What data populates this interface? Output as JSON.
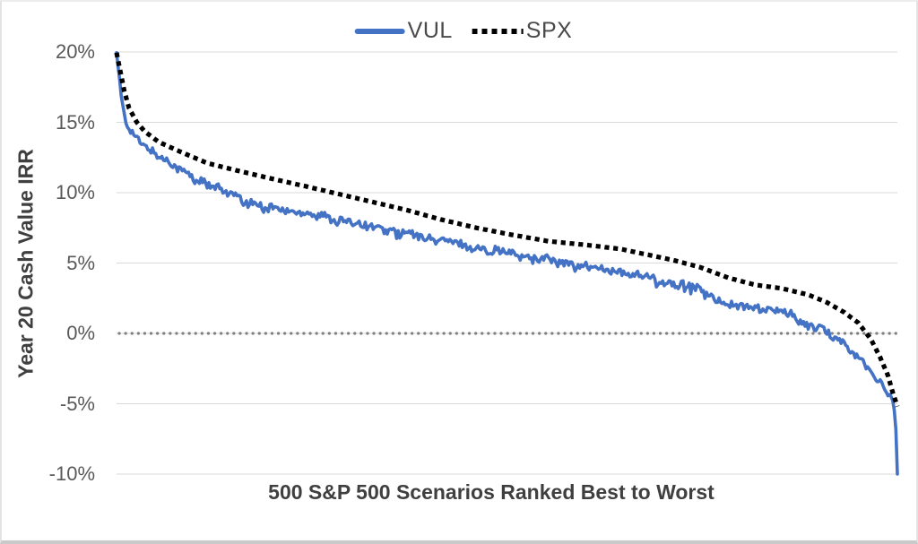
{
  "chart_data": {
    "type": "line",
    "title": "",
    "xlabel": "500 S&P 500 Scenarios Ranked Best to Worst",
    "ylabel": "Year 20 Cash Value IRR",
    "x_range": [
      1,
      500
    ],
    "ylim": [
      -10,
      20
    ],
    "y_ticks": [
      "20%",
      "15%",
      "10%",
      "5%",
      "0%",
      "-5%",
      "-10%"
    ],
    "y_tick_values": [
      20,
      15,
      10,
      5,
      0,
      -5,
      -10
    ],
    "grid": true,
    "legend_position": "top-center",
    "zero_reference_line": {
      "value": 0,
      "color": "#7f7f7f",
      "style": "round-dotted"
    },
    "series": [
      {
        "name": "VUL",
        "color": "#4472C4",
        "style": "solid",
        "noise": 0.26,
        "control_points": [
          [
            1,
            19.95
          ],
          [
            3,
            18.0
          ],
          [
            4,
            16.8
          ],
          [
            7,
            15.0
          ],
          [
            11,
            14.2
          ],
          [
            16,
            13.6
          ],
          [
            22,
            13.1
          ],
          [
            31,
            12.4
          ],
          [
            42,
            11.6
          ],
          [
            54,
            10.9
          ],
          [
            65,
            10.3
          ],
          [
            77,
            9.8
          ],
          [
            82,
            9.35
          ],
          [
            88,
            9.25
          ],
          [
            95,
            9.05
          ],
          [
            105,
            8.85
          ],
          [
            128,
            8.45
          ],
          [
            157,
            7.75
          ],
          [
            187,
            7.05
          ],
          [
            214,
            6.5
          ],
          [
            228,
            6.1
          ],
          [
            243,
            5.9
          ],
          [
            256,
            5.6
          ],
          [
            271,
            5.35
          ],
          [
            286,
            5.05
          ],
          [
            300,
            4.8
          ],
          [
            314,
            4.5
          ],
          [
            323,
            4.35
          ],
          [
            340,
            4.0
          ],
          [
            346,
            3.8
          ],
          [
            357,
            3.55
          ],
          [
            372,
            3.25
          ],
          [
            380,
            2.7
          ],
          [
            386,
            2.4
          ],
          [
            395,
            2.0
          ],
          [
            403,
            1.9
          ],
          [
            415,
            1.75
          ],
          [
            426,
            1.5
          ],
          [
            432,
            1.3
          ],
          [
            438,
            0.9
          ],
          [
            443,
            0.6
          ],
          [
            450,
            0.35
          ],
          [
            460,
            -0.3
          ],
          [
            466,
            -0.7
          ],
          [
            472,
            -1.4
          ],
          [
            478,
            -2.0
          ],
          [
            483,
            -2.8
          ],
          [
            488,
            -3.4
          ],
          [
            492,
            -3.9
          ],
          [
            495,
            -4.4
          ],
          [
            497,
            -4.9
          ],
          [
            498,
            -5.4
          ],
          [
            499,
            -6.8
          ],
          [
            500,
            -10.0
          ]
        ]
      },
      {
        "name": "SPX",
        "color": "#000000",
        "style": "square-dotted",
        "noise": 0,
        "control_points": [
          [
            1,
            19.95
          ],
          [
            4,
            18.3
          ],
          [
            6,
            17.2
          ],
          [
            9,
            16.0
          ],
          [
            14,
            15.0
          ],
          [
            19,
            14.35
          ],
          [
            28,
            13.6
          ],
          [
            42,
            12.9
          ],
          [
            59,
            12.1
          ],
          [
            77,
            11.6
          ],
          [
            100,
            11.0
          ],
          [
            122,
            10.45
          ],
          [
            145,
            9.85
          ],
          [
            168,
            9.25
          ],
          [
            187,
            8.75
          ],
          [
            208,
            8.1
          ],
          [
            231,
            7.5
          ],
          [
            254,
            7.0
          ],
          [
            277,
            6.55
          ],
          [
            300,
            6.3
          ],
          [
            323,
            6.0
          ],
          [
            340,
            5.6
          ],
          [
            357,
            5.2
          ],
          [
            374,
            4.7
          ],
          [
            392,
            3.95
          ],
          [
            409,
            3.45
          ],
          [
            426,
            3.2
          ],
          [
            443,
            2.75
          ],
          [
            455,
            2.2
          ],
          [
            466,
            1.5
          ],
          [
            475,
            0.75
          ],
          [
            483,
            -0.4
          ],
          [
            489,
            -1.7
          ],
          [
            494,
            -3.0
          ],
          [
            497,
            -4.2
          ],
          [
            500,
            -5.2
          ]
        ]
      }
    ]
  },
  "colors": {
    "background": "#ffffff",
    "gridline": "#d9d9d9",
    "tick_label": "#595959",
    "axis_title": "#3f3f3f",
    "legend_label": "#4a4a4a",
    "vul_blue": "#4472C4",
    "spx_black": "#000000",
    "zero_dotted_gray": "#7f7f7f"
  }
}
